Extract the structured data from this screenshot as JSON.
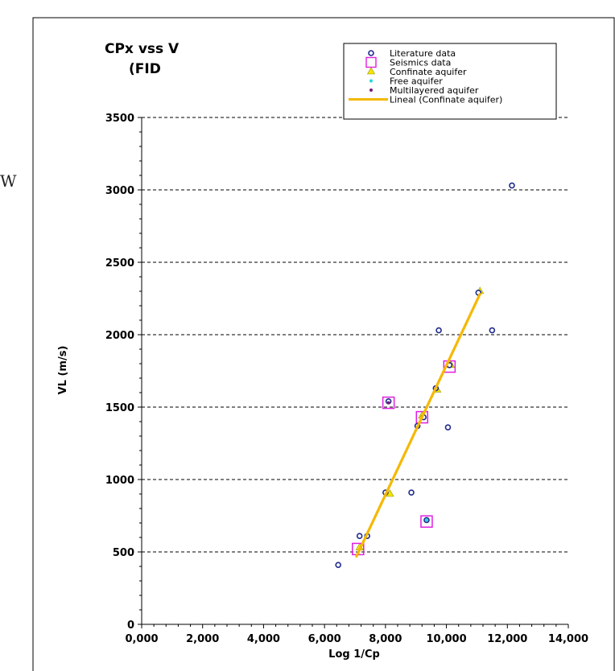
{
  "stray_text": "W",
  "chart_data": {
    "type": "scatter",
    "title_lines": [
      "CPx vss V",
      "(FID"
    ],
    "xlabel": "Log 1/Cp",
    "ylabel": "VL (m/s)",
    "xlim": [
      0,
      14000
    ],
    "ylim": [
      0,
      3500
    ],
    "x_ticks": [
      0,
      2000,
      4000,
      6000,
      8000,
      10000,
      12000,
      14000
    ],
    "x_tick_labels": [
      "0,000",
      "2,000",
      "4,000",
      "6,000",
      "8,000",
      "10,000",
      "12,000",
      "14,000"
    ],
    "y_ticks": [
      0,
      500,
      1000,
      1500,
      2000,
      2500,
      3000,
      3500
    ],
    "y_tick_labels": [
      "0",
      "500",
      "1000",
      "1500",
      "2000",
      "2500",
      "3000",
      "3500"
    ],
    "grid": "horizontal-dashed",
    "legend_position": "top-right",
    "colors": {
      "literature": "#1f2a8c",
      "seismics": "#e020e0",
      "confinate": "#f2e600",
      "free": "#22d8d8",
      "multilayered": "#7a1a7a",
      "fit_line": "#f5b800"
    },
    "series": [
      {
        "name": "Literature data",
        "marker": "circle",
        "points": [
          [
            6450,
            410
          ],
          [
            7150,
            610
          ],
          [
            7400,
            610
          ],
          [
            8000,
            910
          ],
          [
            8100,
            1540
          ],
          [
            8850,
            910
          ],
          [
            9050,
            1370
          ],
          [
            9250,
            1430
          ],
          [
            9350,
            720
          ],
          [
            9650,
            1630
          ],
          [
            9750,
            2030
          ],
          [
            10050,
            1360
          ],
          [
            10100,
            1790
          ],
          [
            11050,
            2290
          ],
          [
            11500,
            2030
          ],
          [
            12150,
            3030
          ]
        ]
      },
      {
        "name": "Seismics data",
        "marker": "square",
        "points": [
          [
            7100,
            520
          ],
          [
            8100,
            1530
          ],
          [
            9200,
            1430
          ],
          [
            9350,
            710
          ],
          [
            10100,
            1780
          ]
        ]
      },
      {
        "name": "Confinate aquifer",
        "marker": "triangle",
        "points": [
          [
            7150,
            530
          ],
          [
            8150,
            900
          ],
          [
            9200,
            1440
          ],
          [
            9700,
            1620
          ],
          [
            10150,
            1790
          ],
          [
            11100,
            2300
          ]
        ]
      },
      {
        "name": "Free aquifer",
        "marker": "dot",
        "points": [
          [
            9350,
            720
          ]
        ]
      },
      {
        "name": "Multilayered aquifer",
        "marker": "dot",
        "points": [
          [
            8100,
            1530
          ]
        ]
      }
    ],
    "fit_line": {
      "name": "Lineal (Confinate aquifer)",
      "points": [
        [
          7050,
          470
        ],
        [
          11100,
          2280
        ]
      ]
    }
  }
}
